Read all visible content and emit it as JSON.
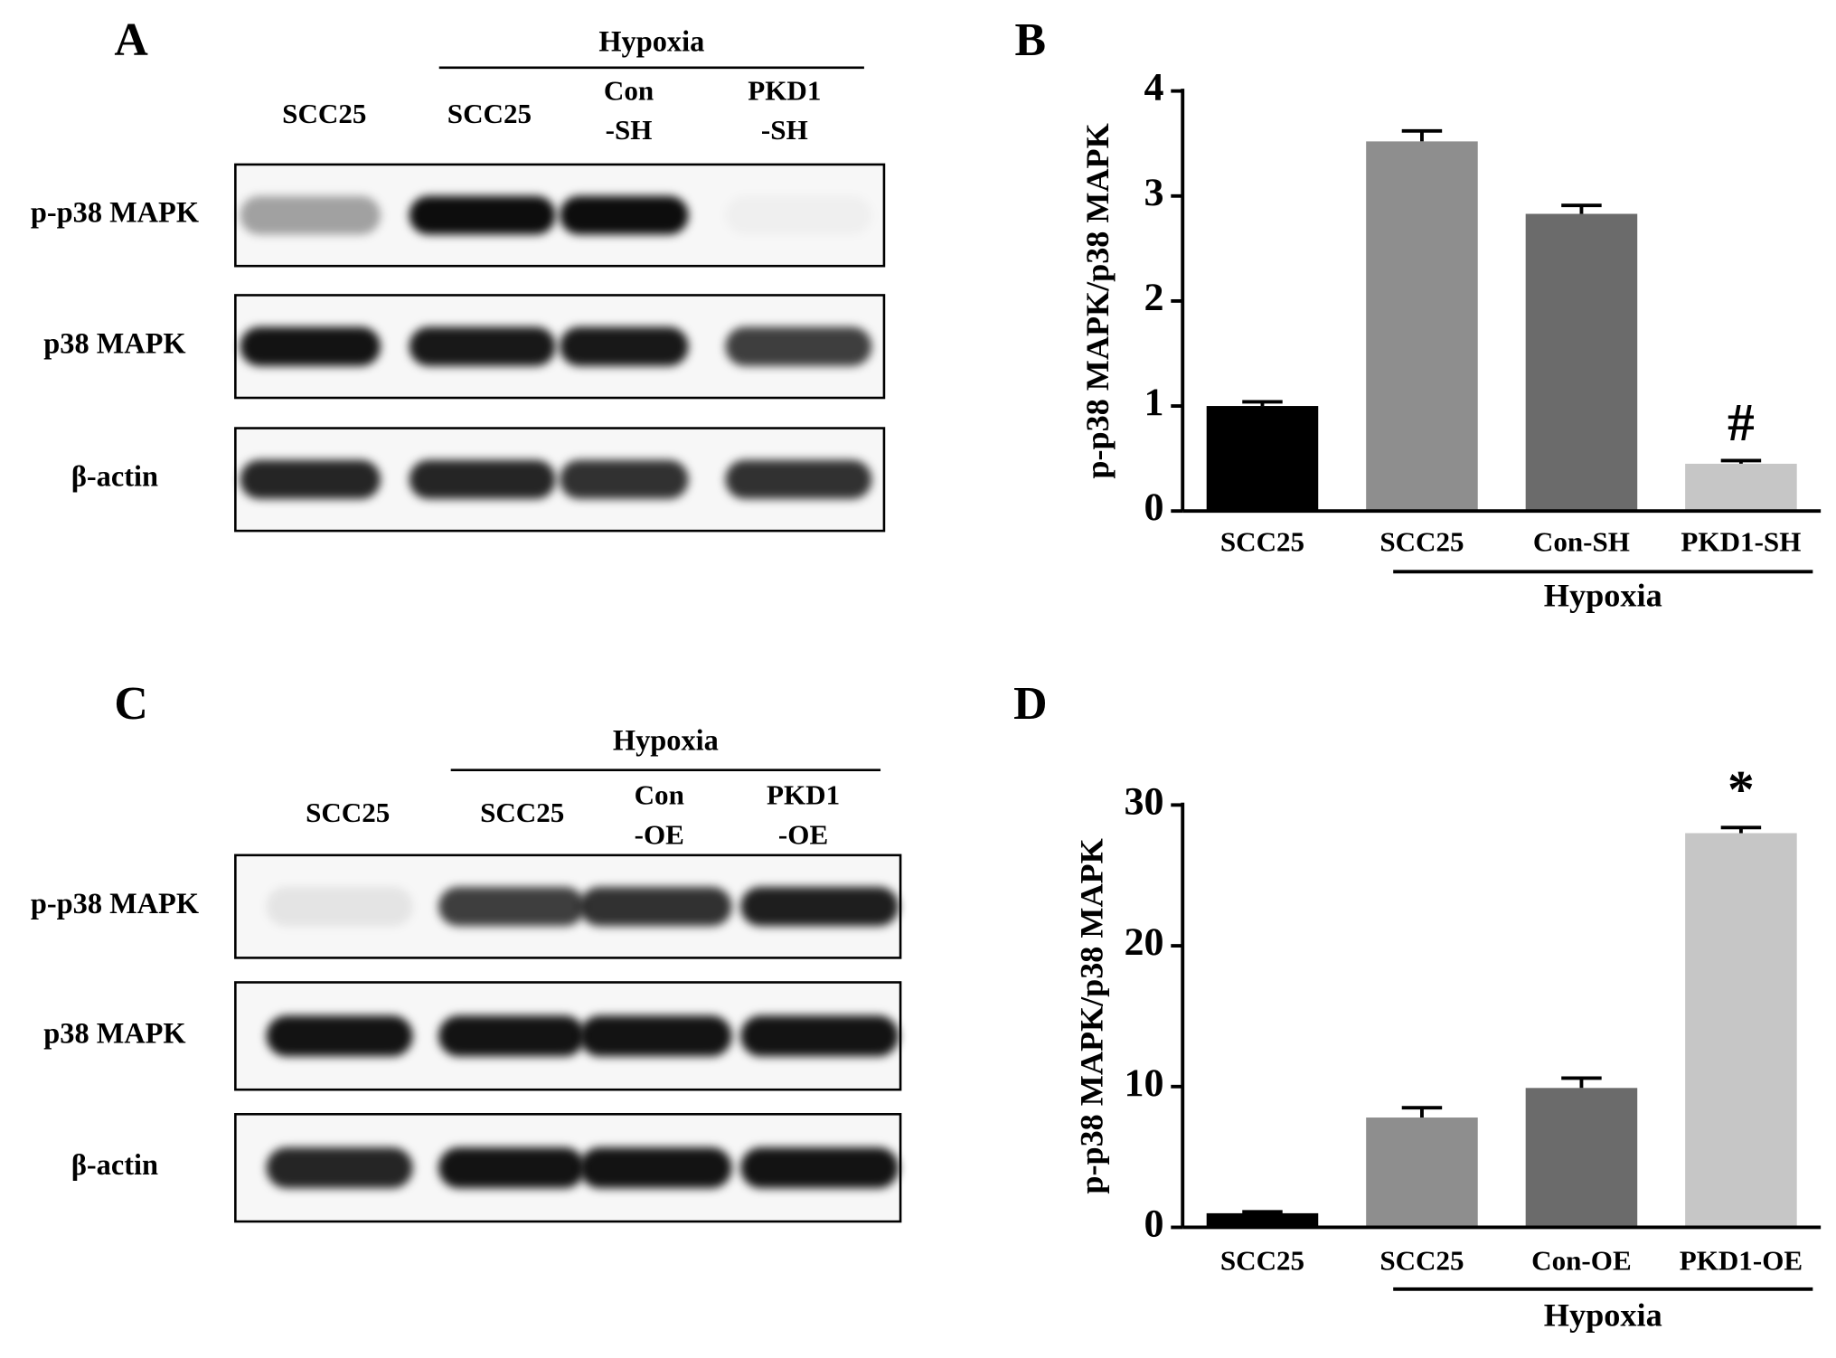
{
  "blots": [
    {
      "panel": "A",
      "lanes": [
        [
          "SCC25"
        ],
        [
          "SCC25"
        ],
        [
          "Con",
          "-SH"
        ],
        [
          "PKD1",
          "-SH"
        ]
      ],
      "groups": [
        null,
        "Hypoxia",
        "Hypoxia",
        "Hypoxia"
      ],
      "rows": [
        "p-p38 MAPK",
        "p38 MAPK",
        "β-actin"
      ]
    },
    {
      "panel": "C",
      "lanes": [
        [
          "SCC25"
        ],
        [
          "SCC25"
        ],
        [
          "Con",
          "-OE"
        ],
        [
          "PKD1",
          "-OE"
        ]
      ],
      "groups": [
        null,
        "Hypoxia",
        "Hypoxia",
        "Hypoxia"
      ],
      "rows": [
        "p-p38 MAPK",
        "p38 MAPK",
        "β-actin"
      ]
    }
  ],
  "chart_data": [
    {
      "type": "bar",
      "panel": "B",
      "ylabel": "p-p38 MAPK/p38 MAPK",
      "categories": [
        "SCC25",
        "SCC25",
        "Con-SH",
        "PKD1-SH"
      ],
      "groups": [
        null,
        "Hypoxia",
        "Hypoxia",
        "Hypoxia"
      ],
      "values": [
        1.0,
        3.52,
        2.83,
        0.45
      ],
      "errors": [
        0.04,
        0.1,
        0.08,
        0.03
      ],
      "annotations": [
        null,
        null,
        null,
        "#"
      ],
      "colors": [
        "#000000",
        "#8e8e8e",
        "#6b6b6b",
        "#c6c6c6"
      ],
      "ylim": [
        0,
        4
      ],
      "yticks": [
        0,
        1,
        2,
        3,
        4
      ]
    },
    {
      "type": "bar",
      "panel": "D",
      "ylabel": "p-p38 MAPK/p38 MAPK",
      "categories": [
        "SCC25",
        "SCC25",
        "Con-OE",
        "PKD1-OE"
      ],
      "groups": [
        null,
        "Hypoxia",
        "Hypoxia",
        "Hypoxia"
      ],
      "values": [
        1.0,
        7.8,
        9.9,
        28.0
      ],
      "errors": [
        0.1,
        0.7,
        0.7,
        0.4
      ],
      "annotations": [
        null,
        null,
        null,
        "*"
      ],
      "colors": [
        "#000000",
        "#8e8e8e",
        "#6b6b6b",
        "#c6c6c6"
      ],
      "ylim": [
        0,
        30
      ],
      "yticks": [
        0,
        10,
        20,
        30
      ]
    }
  ]
}
